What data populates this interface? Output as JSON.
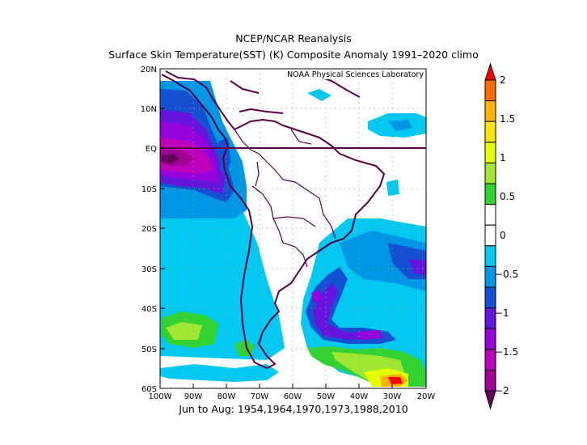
{
  "header": {
    "line1": "NCEP/NCAR Reanalysis",
    "line2": "Surface Skin Temperature(SST) (K) Composite Anomaly 1991–2020 climo"
  },
  "map": {
    "watermark": "NOAA Physical Sciences Laboratory",
    "lat_labels": [
      "20N",
      "10N",
      "EQ",
      "10S",
      "20S",
      "30S",
      "40S",
      "50S",
      "60S"
    ],
    "lon_labels": [
      "100W",
      "90W",
      "80W",
      "70W",
      "60W",
      "50W",
      "40W",
      "30W",
      "20W"
    ],
    "lat_range": [
      -60,
      20
    ],
    "lon_range": [
      -100,
      -20
    ]
  },
  "colorbar": {
    "labels": [
      "2",
      "1.5",
      "1",
      "0.5",
      "0",
      "−0.5",
      "−1",
      "−1.5",
      "−2"
    ],
    "colors": [
      "#ff0000",
      "#ff6a00",
      "#ffb300",
      "#ffe600",
      "#e6ff00",
      "#a0e632",
      "#32d232",
      "#ffffff",
      "#ffffff",
      "#00c8f0",
      "#0096e6",
      "#1450d2",
      "#6414dc",
      "#9600dc",
      "#be00be",
      "#a00096",
      "#64005a"
    ]
  },
  "footer": {
    "period": "Jun to Aug: 1954,1964,1970,1973,1988,2010"
  }
}
